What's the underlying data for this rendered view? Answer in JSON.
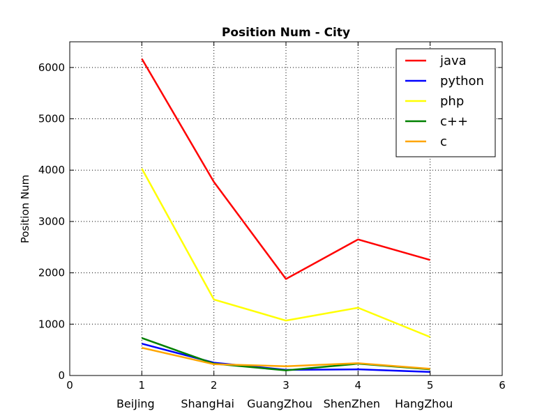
{
  "chart_data": {
    "type": "line",
    "title": "Position Num - City",
    "ylabel": "Position Num",
    "xlabel": "",
    "x": [
      1,
      2,
      3,
      4,
      5
    ],
    "xlim": [
      0,
      6
    ],
    "ylim": [
      0,
      6500
    ],
    "xticks": [
      "0",
      "1",
      "2",
      "3",
      "4",
      "5",
      "6"
    ],
    "yticks": [
      "0",
      "1000",
      "2000",
      "3000",
      "4000",
      "5000",
      "6000"
    ],
    "city_labels": [
      "BeiJing",
      "ShangHai",
      "GuangZhou",
      "ShenZhen",
      "HangZhou"
    ],
    "grid": true,
    "legend_placement": "top-right",
    "series": [
      {
        "name": "java",
        "color": "#ff0000",
        "values": [
          6170,
          3770,
          1880,
          2650,
          2250
        ]
      },
      {
        "name": "python",
        "color": "#0000ff",
        "values": [
          620,
          250,
          110,
          120,
          70
        ]
      },
      {
        "name": "php",
        "color": "#ffff00",
        "values": [
          4030,
          1480,
          1070,
          1320,
          750
        ]
      },
      {
        "name": "c++",
        "color": "#008000",
        "values": [
          730,
          230,
          100,
          230,
          120
        ]
      },
      {
        "name": "c",
        "color": "#ffa500",
        "values": [
          540,
          220,
          180,
          240,
          130
        ]
      }
    ]
  }
}
